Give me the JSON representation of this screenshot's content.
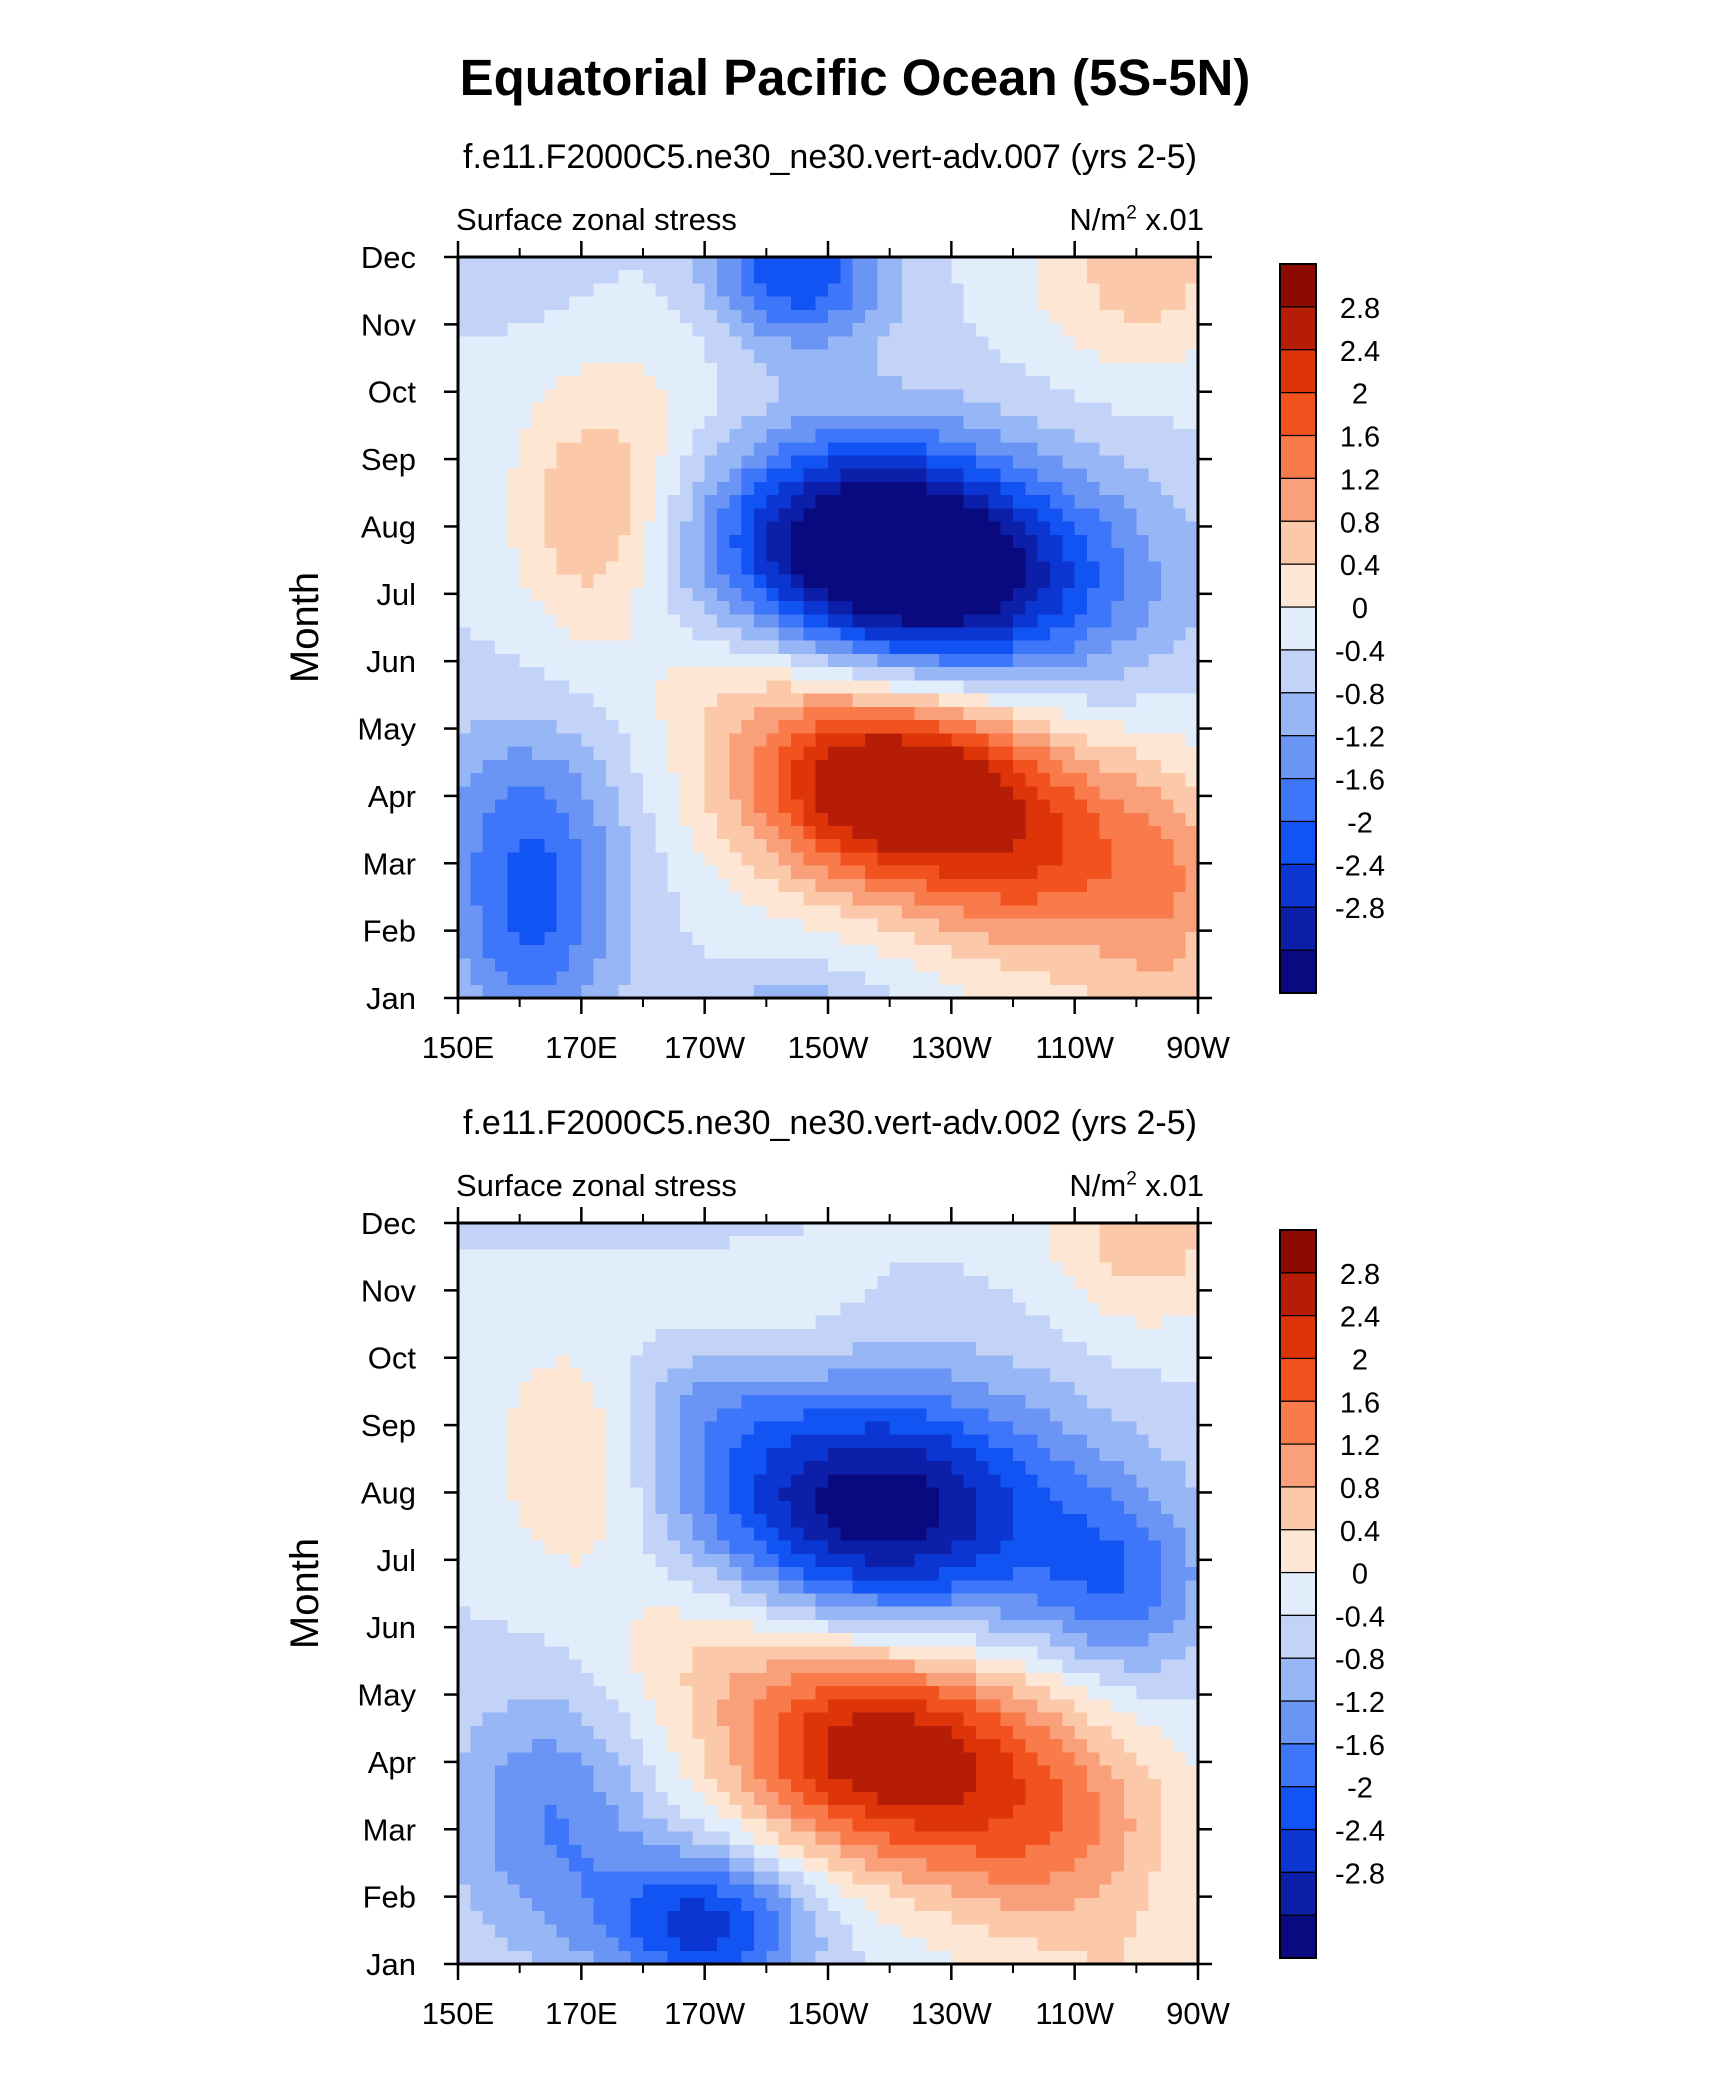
{
  "title": "Equatorial Pacific Ocean (5S-5N)",
  "colors": {
    "levels_palette": [
      "#0a0a80",
      "#0c1fa8",
      "#0b36d2",
      "#1253f3",
      "#3d76fb",
      "#6b95f5",
      "#97b6f5",
      "#c2d3f7",
      "#e2edfc",
      "#fde6d3",
      "#fbc9aa",
      "#f9a07a",
      "#f97a4b",
      "#f2521e",
      "#dd340a",
      "#b51d06",
      "#8b0a02"
    ]
  },
  "chart_data": [
    {
      "type": "contour",
      "subtitle": "f.e11.F2000C5.ne30_ne30.vert-adv.007 (yrs 2-5)",
      "left_label": "Surface zonal stress",
      "units_main": "N/m",
      "units_sup": "2",
      "units_tail": "x.01",
      "ylabel": "Month",
      "xlabel": "",
      "y_ticks": [
        "Jan",
        "Feb",
        "Mar",
        "Apr",
        "May",
        "Jun",
        "Jul",
        "Aug",
        "Sep",
        "Oct",
        "Nov",
        "Dec"
      ],
      "x_ticks": [
        "150E",
        "170E",
        "170W",
        "150W",
        "130W",
        "110W",
        "90W"
      ],
      "x_range_deg_east": [
        150,
        270
      ],
      "levels": [
        -2.8,
        -2.4,
        -2,
        -1.6,
        -1.2,
        -0.8,
        -0.4,
        0,
        0.4,
        0.8,
        1.2,
        1.6,
        2,
        2.4,
        2.8
      ],
      "colorbar_labels": [
        "2.8",
        "2.4",
        "2",
        "1.6",
        "1.2",
        "0.8",
        "0.4",
        "0",
        "-0.4",
        "-0.8",
        "-1.2",
        "-1.6",
        "-2",
        "-2.4",
        "-2.8"
      ],
      "features": [
        {
          "lon": 220,
          "month": 3.2,
          "amp": 3.6,
          "slon": 17,
          "smon": 1.1
        },
        {
          "lon": 247,
          "month": 2.0,
          "amp": 1.8,
          "slon": 16,
          "smon": 1.2
        },
        {
          "lon": 266,
          "month": 1.4,
          "amp": 0.8,
          "slon": 7,
          "smon": 1.4
        },
        {
          "lon": 198,
          "month": 4.9,
          "amp": 0.8,
          "slon": 14,
          "smon": 0.9
        },
        {
          "lon": 226,
          "month": 6.2,
          "amp": -3.4,
          "slon": 22,
          "smon": 1.2
        },
        {
          "lon": 213,
          "month": 7.2,
          "amp": -1.5,
          "slon": 16,
          "smon": 1.0
        },
        {
          "lon": 205,
          "month": 10.8,
          "amp": -2.0,
          "slon": 10,
          "smon": 0.8
        },
        {
          "lon": 162,
          "month": 1.2,
          "amp": -1.6,
          "slon": 10,
          "smon": 1.4
        },
        {
          "lon": 160,
          "month": 3.0,
          "amp": -0.6,
          "slon": 12,
          "smon": 1.0
        },
        {
          "lon": 172,
          "month": 7.0,
          "amp": 1.1,
          "slon": 9,
          "smon": 1.2
        },
        {
          "lon": 180,
          "month": 8.6,
          "amp": 0.4,
          "slon": 14,
          "smon": 1.5
        },
        {
          "lon": 260,
          "month": 10.6,
          "amp": 0.9,
          "slon": 12,
          "smon": 1.0
        }
      ]
    },
    {
      "type": "contour",
      "subtitle": "f.e11.F2000C5.ne30_ne30.vert-adv.002 (yrs 2-5)",
      "left_label": "Surface zonal stress",
      "units_main": "N/m",
      "units_sup": "2",
      "units_tail": "x.01",
      "ylabel": "Month",
      "xlabel": "",
      "y_ticks": [
        "Jan",
        "Feb",
        "Mar",
        "Apr",
        "May",
        "Jun",
        "Jul",
        "Aug",
        "Sep",
        "Oct",
        "Nov",
        "Dec"
      ],
      "x_ticks": [
        "150E",
        "170E",
        "170W",
        "150W",
        "130W",
        "110W",
        "90W"
      ],
      "x_range_deg_east": [
        150,
        270
      ],
      "levels": [
        -2.8,
        -2.4,
        -2,
        -1.6,
        -1.2,
        -0.8,
        -0.4,
        0,
        0.4,
        0.8,
        1.2,
        1.6,
        2,
        2.4,
        2.8
      ],
      "colorbar_labels": [
        "2.8",
        "2.4",
        "2",
        "1.6",
        "1.2",
        "0.8",
        "0.4",
        "0",
        "-0.4",
        "-0.8",
        "-1.2",
        "-1.6",
        "-2",
        "-2.4",
        "-2.8"
      ],
      "features": [
        {
          "lon": 218,
          "month": 3.2,
          "amp": 3.1,
          "slon": 17,
          "smon": 1.2
        },
        {
          "lon": 246,
          "month": 2.0,
          "amp": 1.6,
          "slon": 15,
          "smon": 1.3
        },
        {
          "lon": 192,
          "month": 5.0,
          "amp": 0.9,
          "slon": 14,
          "smon": 1.0
        },
        {
          "lon": 218,
          "month": 6.7,
          "amp": -3.2,
          "slon": 22,
          "smon": 1.3
        },
        {
          "lon": 258,
          "month": 5.6,
          "amp": -1.2,
          "slon": 10,
          "smon": 1.0
        },
        {
          "lon": 190,
          "month": 8.4,
          "amp": -0.6,
          "slon": 12,
          "smon": 0.7
        },
        {
          "lon": 190,
          "month": 0.6,
          "amp": -2.2,
          "slon": 12,
          "smon": 0.8
        },
        {
          "lon": 165,
          "month": 2.2,
          "amp": -1.2,
          "slon": 11,
          "smon": 1.3
        },
        {
          "lon": 170,
          "month": 7.5,
          "amp": 1.0,
          "slon": 10,
          "smon": 1.3
        },
        {
          "lon": 262,
          "month": 10.8,
          "amp": 1.0,
          "slon": 11,
          "smon": 1.0
        },
        {
          "lon": 200,
          "month": 9.5,
          "amp": 0.4,
          "slon": 12,
          "smon": 0.9
        }
      ]
    }
  ]
}
